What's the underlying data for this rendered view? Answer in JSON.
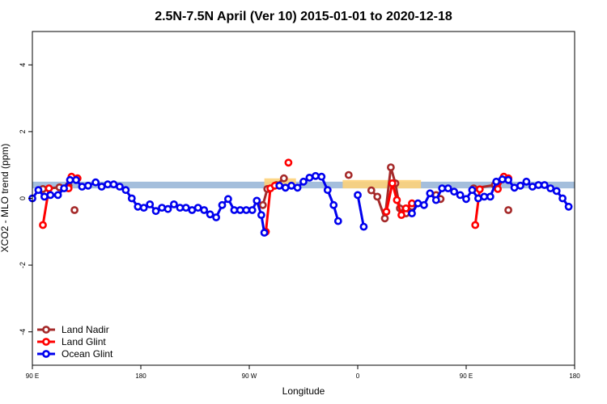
{
  "chart_data": {
    "type": "line",
    "title": "2.5N-7.5N April (Ver 10)   2015-01-01 to 2020-12-18",
    "xlabel": "Longitude",
    "ylabel": "XCO2 - MLO trend (ppm)",
    "xlim": [
      0,
      360
    ],
    "ylim": [
      -5,
      5
    ],
    "x_ticks": [
      {
        "value": 0,
        "label": "90 E"
      },
      {
        "value": 72,
        "label": "180"
      },
      {
        "value": 144,
        "label": "90 W"
      },
      {
        "value": 216,
        "label": "0"
      },
      {
        "value": 288,
        "label": "90 E"
      },
      {
        "value": 360,
        "label": "180"
      }
    ],
    "y_ticks": [
      {
        "value": -4,
        "label": "-4"
      },
      {
        "value": -2,
        "label": "-2"
      },
      {
        "value": 0,
        "label": "0"
      },
      {
        "value": 2,
        "label": "2"
      },
      {
        "value": 4,
        "label": "4"
      }
    ],
    "grid": false,
    "legend_position": "bottom-left",
    "band": {
      "color": "#a4bedc",
      "x": [
        0,
        360
      ],
      "y": [
        0.3,
        0.5
      ]
    },
    "land_shading": {
      "color": "#fdd27a",
      "regions": [
        {
          "x": [
            154,
            175
          ],
          "y": [
            0.5,
            0.6
          ]
        },
        {
          "x": [
            206,
            258
          ],
          "y": [
            0.5,
            0.55
          ]
        }
      ]
    },
    "series": [
      {
        "name": "Land Nadir",
        "color": "#a52a2a",
        "segments": [
          [
            [
              7,
              0.28
            ],
            [
              18,
              0.33
            ],
            [
              24,
              0.38
            ]
          ],
          [
            [
              28,
              -0.35
            ]
          ],
          [
            [
              153,
              -0.2
            ],
            [
              156,
              0.28
            ],
            [
              162,
              0.4
            ],
            [
              167,
              0.6
            ]
          ],
          [
            [
              210,
              0.7
            ]
          ],
          [
            [
              225,
              0.24
            ],
            [
              229,
              0.05
            ],
            [
              234,
              -0.6
            ],
            [
              238,
              0.93
            ],
            [
              241,
              0.45
            ],
            [
              244,
              -0.3
            ],
            [
              248,
              -0.45
            ],
            [
              252,
              -0.25
            ]
          ],
          [
            [
              268,
              0.1
            ],
            [
              271,
              -0.02
            ]
          ],
          [
            [
              293,
              0.3
            ],
            [
              307,
              0.4
            ],
            [
              314,
              0.6
            ]
          ],
          [
            [
              316,
              -0.35
            ]
          ]
        ]
      },
      {
        "name": "Land Glint",
        "color": "#ff0000",
        "segments": [
          [
            [
              7,
              -0.8
            ],
            [
              11,
              0.3
            ]
          ],
          [
            [
              24,
              0.3
            ],
            [
              26,
              0.65
            ],
            [
              30,
              0.6
            ]
          ],
          [
            [
              155,
              -1.0
            ],
            [
              158,
              0.3
            ],
            [
              161,
              0.38
            ]
          ],
          [
            [
              170,
              1.07
            ]
          ],
          [
            [
              235,
              -0.4
            ],
            [
              239,
              0.45
            ],
            [
              242,
              -0.05
            ],
            [
              245,
              -0.5
            ],
            [
              248,
              -0.3
            ],
            [
              252,
              -0.15
            ]
          ],
          [
            [
              294,
              -0.8
            ],
            [
              297,
              0.27
            ]
          ],
          [
            [
              309,
              0.28
            ],
            [
              313,
              0.65
            ],
            [
              316,
              0.6
            ]
          ]
        ]
      },
      {
        "name": "Ocean Glint",
        "color": "#0000ee",
        "segments": [
          [
            [
              0,
              0.0
            ],
            [
              4,
              0.25
            ],
            [
              8,
              0.05
            ],
            [
              12,
              0.1
            ],
            [
              17,
              0.1
            ],
            [
              21,
              0.3
            ],
            [
              25,
              0.55
            ],
            [
              29,
              0.55
            ],
            [
              33,
              0.35
            ],
            [
              37,
              0.38
            ],
            [
              42,
              0.48
            ],
            [
              46,
              0.35
            ],
            [
              50,
              0.42
            ],
            [
              54,
              0.42
            ],
            [
              58,
              0.35
            ],
            [
              62,
              0.25
            ],
            [
              66,
              0.0
            ],
            [
              70,
              -0.25
            ],
            [
              74,
              -0.28
            ],
            [
              78,
              -0.18
            ],
            [
              82,
              -0.38
            ],
            [
              86,
              -0.28
            ],
            [
              90,
              -0.32
            ],
            [
              94,
              -0.18
            ],
            [
              98,
              -0.28
            ],
            [
              102,
              -0.28
            ],
            [
              106,
              -0.35
            ],
            [
              110,
              -0.28
            ],
            [
              114,
              -0.35
            ],
            [
              118,
              -0.48
            ],
            [
              122,
              -0.57
            ],
            [
              126,
              -0.2
            ],
            [
              130,
              -0.02
            ],
            [
              134,
              -0.35
            ],
            [
              138,
              -0.35
            ],
            [
              142,
              -0.35
            ],
            [
              146,
              -0.35
            ],
            [
              149,
              -0.07
            ],
            [
              152,
              -0.5
            ],
            [
              154,
              -1.03
            ]
          ],
          [
            [
              164,
              0.38
            ],
            [
              168,
              0.32
            ],
            [
              172,
              0.38
            ],
            [
              176,
              0.32
            ],
            [
              180,
              0.5
            ],
            [
              184,
              0.62
            ],
            [
              188,
              0.67
            ],
            [
              192,
              0.65
            ],
            [
              196,
              0.25
            ],
            [
              200,
              -0.2
            ],
            [
              203,
              -0.68
            ]
          ],
          [
            [
              216,
              0.1
            ],
            [
              220,
              -0.85
            ]
          ],
          [
            [
              252,
              -0.45
            ],
            [
              256,
              -0.15
            ],
            [
              260,
              -0.2
            ],
            [
              264,
              0.15
            ],
            [
              268,
              -0.05
            ],
            [
              272,
              0.3
            ],
            [
              276,
              0.3
            ],
            [
              280,
              0.2
            ],
            [
              284,
              0.1
            ],
            [
              288,
              -0.02
            ],
            [
              292,
              0.25
            ],
            [
              296,
              0.0
            ],
            [
              300,
              0.05
            ],
            [
              304,
              0.05
            ],
            [
              308,
              0.5
            ],
            [
              312,
              0.57
            ],
            [
              316,
              0.55
            ],
            [
              320,
              0.32
            ],
            [
              324,
              0.38
            ],
            [
              328,
              0.5
            ],
            [
              332,
              0.35
            ],
            [
              336,
              0.4
            ],
            [
              340,
              0.4
            ],
            [
              344,
              0.3
            ],
            [
              348,
              0.22
            ],
            [
              352,
              0.0
            ],
            [
              356,
              -0.25
            ]
          ]
        ]
      }
    ]
  }
}
